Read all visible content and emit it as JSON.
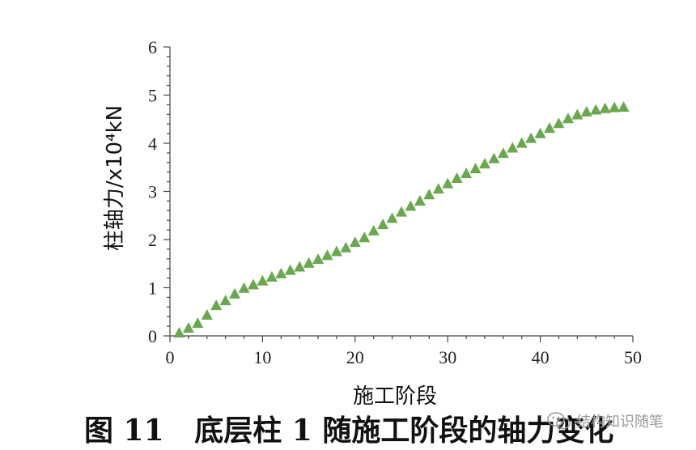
{
  "chart_data": {
    "type": "scatter",
    "marker": "triangle",
    "color": "#6aa84f",
    "xlabel": "施工阶段",
    "ylabel": "柱轴力/x10⁴kN",
    "xlim": [
      0,
      50
    ],
    "ylim": [
      0,
      6
    ],
    "xticks": [
      "0",
      "10",
      "20",
      "30",
      "40",
      "50"
    ],
    "yticks": [
      "0",
      "1",
      "2",
      "3",
      "4",
      "5",
      "6"
    ],
    "grid": false,
    "series": [
      {
        "x": [
          1,
          2,
          3,
          4,
          5,
          6,
          7,
          8,
          9,
          10,
          11,
          12,
          13,
          14,
          15,
          16,
          17,
          18,
          19,
          20,
          21,
          22,
          23,
          24,
          25,
          26,
          27,
          28,
          29,
          30,
          31,
          32,
          33,
          34,
          35,
          36,
          37,
          38,
          39,
          40,
          41,
          42,
          43,
          44,
          45,
          46,
          47,
          48,
          49
        ],
        "y": [
          0.05,
          0.15,
          0.25,
          0.42,
          0.62,
          0.72,
          0.86,
          0.98,
          1.05,
          1.13,
          1.21,
          1.28,
          1.35,
          1.42,
          1.5,
          1.58,
          1.66,
          1.74,
          1.82,
          1.93,
          2.03,
          2.17,
          2.3,
          2.43,
          2.56,
          2.68,
          2.79,
          2.92,
          3.04,
          3.15,
          3.26,
          3.36,
          3.46,
          3.56,
          3.67,
          3.78,
          3.89,
          3.99,
          4.09,
          4.19,
          4.3,
          4.4,
          4.5,
          4.58,
          4.64,
          4.68,
          4.71,
          4.73,
          4.74
        ]
      }
    ]
  },
  "caption": "图 11   底层柱 1 随施工阶段的轴力变化",
  "watermark": {
    "text": "结构知识随笔",
    "icon": "wechat-icon"
  }
}
